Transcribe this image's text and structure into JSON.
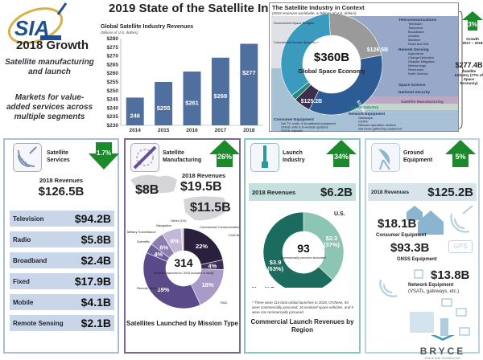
{
  "header": {
    "title": "2019 State of the Satellite Industry",
    "logo_text": "SIA",
    "logo_subtext": "Satellite Industry Association"
  },
  "growth_summary": {
    "title": "2018 Growth",
    "line1": "Satellite manufacturing and launch",
    "line2": "Markets for value-added services across multiple segments"
  },
  "chart_data": [
    {
      "type": "bar",
      "title": "Global Satellite Industry Revenues",
      "subtitle": "(billions of U.S. dollars)",
      "categories": [
        "2014",
        "2015",
        "2016",
        "2017",
        "2018"
      ],
      "values": [
        246,
        255,
        261,
        269,
        277
      ],
      "data_labels": [
        "246",
        "$255",
        "$261",
        "$269",
        "$277"
      ],
      "ylim": [
        230,
        280
      ],
      "yticks": [
        "$230",
        "$235",
        "$240",
        "$245",
        "$250",
        "$255",
        "$260",
        "$265",
        "$270",
        "$275",
        "$280"
      ],
      "grid": false,
      "color": "#4f6f9e"
    },
    {
      "type": "pie",
      "title": "The Satellite Industry in Context",
      "subtitle": "(2018 revenues worldwide, in billions of U.S. dollars)",
      "center_value": "$360B",
      "center_label": "Global Space Economy",
      "slices": [
        {
          "name": "Non-Satellite Space Industry",
          "value": 82.5,
          "label": "$82.5",
          "color": "#9a9a9a"
        },
        {
          "name": "Satellite Services",
          "value": 126.5,
          "label": "$126.5B",
          "color": "#2d5b93"
        },
        {
          "name": "Satellite Manufacturing",
          "value": 19.5,
          "label": "$19.5B",
          "color": "#3b2f4d"
        },
        {
          "name": "Launch Industry",
          "value": 6.2,
          "label": "$6.2B",
          "color": "#1f8a7a"
        },
        {
          "name": "Ground Equipment",
          "value": 125.2,
          "label": "$125.2B",
          "color": "#3a9bbf"
        }
      ]
    },
    {
      "type": "pie",
      "title": "Satellites Launched by Mission Type",
      "center_value": "314",
      "center_label": "Satellites launched in 2018 included in study",
      "slices": [
        {
          "name": "Commercial Communications",
          "value": 22,
          "label": "22%",
          "color": "#2a1f3d"
        },
        {
          "name": "Civil/ Military Communications",
          "value": 4,
          "label": "4%",
          "color": "#3d3055"
        },
        {
          "name": "R&D",
          "value": 18,
          "label": "18%",
          "color": "#a89bc8"
        },
        {
          "name": "Remote Sensing",
          "value": 39,
          "label": "39%",
          "color": "#5b4a8a"
        },
        {
          "name": "Scientific",
          "value": 4,
          "label": "4%",
          "color": "#6d5c9e"
        },
        {
          "name": "Military Surveillance",
          "value": 6,
          "label": "6%",
          "color": "#8a7db0"
        },
        {
          "name": "Navigation",
          "value": 8,
          "label": "8%",
          "color": "#c2b9d9"
        },
        {
          "name": "Other",
          "value": 1,
          "label": "Other (1%)",
          "color": "#ddd6ea"
        }
      ]
    },
    {
      "type": "pie",
      "title": "Commercial Launch Revenues by Region",
      "center_value": "93",
      "center_label": "Commercially procured launches*",
      "slices": [
        {
          "name": "U.S.",
          "value": 2.3,
          "label": "$2.3 (37%)",
          "color": "#8cc5b3"
        },
        {
          "name": "Non-U.S.",
          "value": 3.9,
          "label": "$3.9 (63%)",
          "color": "#1b6b5e"
        }
      ]
    }
  ],
  "context": {
    "left_notes": [
      "Government Space Budgets",
      "Commercial Human Spaceflight"
    ],
    "telecom_head": "Telecommunications",
    "telecom_items": [
      "Television",
      "Telephone",
      "Broadband",
      "Aviation",
      "Maritime",
      "Road and Rail"
    ],
    "rs_head": "Remote Sensing",
    "rs_items": [
      "Agriculture",
      "Change Detection",
      "Disaster Mitigation",
      "Meteorology",
      "Resources",
      "Earth Science"
    ],
    "space_science": "Space Science",
    "national_security": "National Security",
    "sat_manufacturing": "Satellite Manufacturing",
    "launch_industry": "Launch Industry",
    "consumer_head": "Consumer Equipment",
    "consumer_items": [
      "Sat TV, radio, & broadband equipment",
      "GNSS units & in-vehicle systems",
      "GNSS chipsets"
    ],
    "network_head": "Network Equipment",
    "network_items": [
      "Gateways",
      "VSATs",
      "Network operation centers",
      "Sat news gathering equipment"
    ],
    "growth_pct": "3%",
    "growth_label": "Growth 2017 – 2018",
    "sat_total": "$277.4B",
    "sat_total_label": "Satellite Industry (77% of Space Economy)"
  },
  "panels": {
    "services": {
      "title": "Satellite Services",
      "change": "1.7%",
      "direction": "down",
      "rev_label": "2018 Revenues",
      "rev_value": "$126.5B",
      "rows": [
        {
          "name": "Television",
          "value": "$94.2B"
        },
        {
          "name": "Radio",
          "value": "$5.8B"
        },
        {
          "name": "Broadband",
          "value": "$2.4B"
        },
        {
          "name": "Fixed",
          "value": "$17.9B"
        },
        {
          "name": "Mobile",
          "value": "$4.1B"
        },
        {
          "name": "Remote Sensing",
          "value": "$2.1B"
        }
      ]
    },
    "manufacturing": {
      "title": "Satellite Manufacturing",
      "change": "26%",
      "direction": "up",
      "rev_label": "2018 Revenues",
      "rev_value": "$19.5B",
      "world_value": "$8B",
      "us_value": "$11.5B",
      "caption": "Satellites Launched by Mission Type"
    },
    "launch": {
      "title": "Launch Industry",
      "change": "34%",
      "direction": "up",
      "rev_label": "2018 Revenues",
      "rev_value": "$6.2B",
      "us_label": "U.S.",
      "nonus_label": "Non-U.S.",
      "footnote": "* There were 114 total orbital launches in 2018. Of these, 93 were commercially procured, 16 involved space vehicles, and 5 were not commercially procured",
      "caption": "Commercial Launch Revenues by Region"
    },
    "ground": {
      "title": "Ground Equipment",
      "change": "5%",
      "direction": "up",
      "rev_label": "2018 Revenues",
      "rev_value": "$125.2B",
      "consumer_value": "$18.1B",
      "consumer_label": "Consumer Equipment",
      "gnss_value": "$93.3B",
      "gnss_label": "GNSS Equipment",
      "gps_badge": "GPS",
      "network_value": "$13.8B",
      "network_label": "Network Equipment",
      "network_sub": "(VSATs, gateways, etc.)"
    }
  },
  "footer": {
    "brand": "BRYCE",
    "brand_sub": "SPACE AND TECHNOLOGY"
  }
}
